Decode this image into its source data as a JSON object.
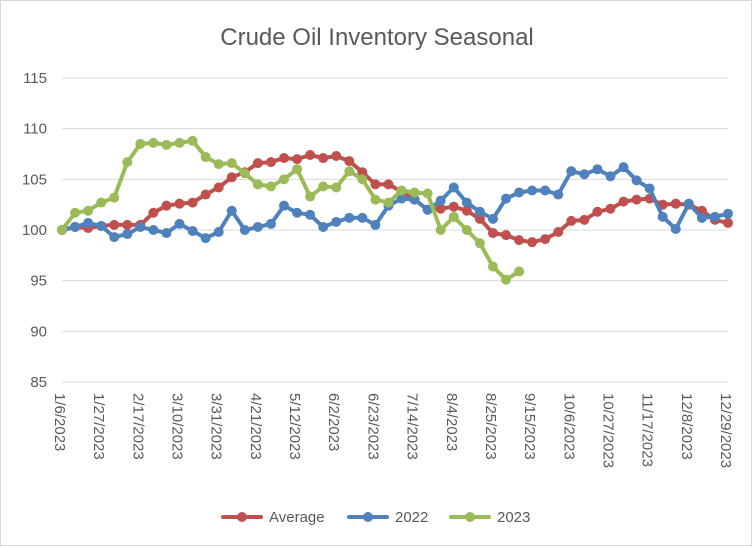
{
  "chart_data": {
    "type": "line",
    "title": "Crude Oil Inventory Seasonal",
    "xlabel": "",
    "ylabel": "",
    "ylim": [
      85,
      115
    ],
    "yticks": [
      85,
      90,
      95,
      100,
      105,
      110,
      115
    ],
    "grid": true,
    "legend_position": "bottom",
    "x_tick_labels": [
      "1/6/2023",
      "1/27/2023",
      "2/17/2023",
      "3/10/2023",
      "3/31/2023",
      "4/21/2023",
      "5/12/2023",
      "6/2/2023",
      "6/23/2023",
      "7/14/2023",
      "8/4/2023",
      "8/25/2023",
      "9/15/2023",
      "10/6/2023",
      "10/27/2023",
      "11/17/2023",
      "12/8/2023",
      "12/29/2023"
    ],
    "x_tick_label_every": 3,
    "x_count": 52,
    "series": [
      {
        "name": "Average",
        "color": "#c0504d",
        "values": [
          100.0,
          100.3,
          100.2,
          100.4,
          100.5,
          100.5,
          100.5,
          101.7,
          102.4,
          102.6,
          102.7,
          103.5,
          104.2,
          105.2,
          105.7,
          106.6,
          106.7,
          107.1,
          107.0,
          107.4,
          107.1,
          107.3,
          106.8,
          105.7,
          104.5,
          104.5,
          103.8,
          103.0,
          102.0,
          102.1,
          102.3,
          101.9,
          101.1,
          99.7,
          99.5,
          99.0,
          98.8,
          99.1,
          99.8,
          100.9,
          101.0,
          101.8,
          102.1,
          102.8,
          103.0,
          103.1,
          102.5,
          102.6,
          102.5,
          101.9,
          101.0,
          100.7
        ]
      },
      {
        "name": "2022",
        "color": "#4f81bd",
        "values": [
          100.0,
          100.3,
          100.7,
          100.4,
          99.3,
          99.6,
          100.3,
          100.0,
          99.7,
          100.6,
          99.9,
          99.2,
          99.8,
          101.9,
          100.0,
          100.3,
          100.6,
          102.4,
          101.7,
          101.5,
          100.3,
          100.8,
          101.2,
          101.2,
          100.5,
          102.4,
          103.1,
          103.0,
          102.0,
          102.9,
          104.2,
          102.7,
          101.8,
          101.1,
          103.1,
          103.7,
          103.9,
          103.9,
          103.5,
          105.8,
          105.5,
          106.0,
          105.3,
          106.2,
          104.9,
          104.1,
          101.3,
          100.1,
          102.6,
          101.2,
          101.3,
          101.6
        ]
      },
      {
        "name": "2023",
        "color": "#9bbb59",
        "values": [
          100.0,
          101.7,
          101.9,
          102.7,
          103.2,
          106.7,
          108.5,
          108.6,
          108.4,
          108.6,
          108.8,
          107.2,
          106.5,
          106.6,
          105.6,
          104.5,
          104.3,
          105.0,
          106.0,
          103.3,
          104.3,
          104.2,
          105.8,
          105.0,
          103.0,
          102.7,
          103.9,
          103.7,
          103.6,
          100.0,
          101.3,
          100.0,
          98.7,
          96.4,
          95.1,
          95.9
        ]
      }
    ]
  }
}
